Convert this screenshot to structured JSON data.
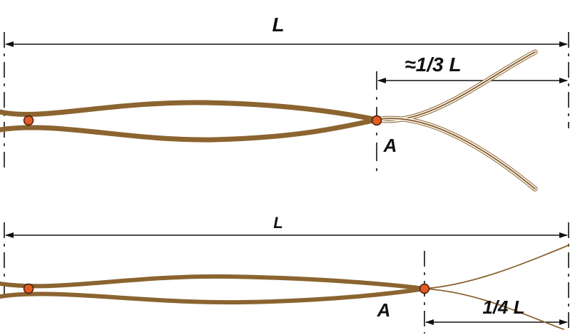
{
  "colors": {
    "rod": "#8b6430",
    "node": "#e35a22",
    "ink": "#111111"
  },
  "top": {
    "length_label": "L",
    "segment_label": "≈1/3 L",
    "node_label": "A"
  },
  "bottom": {
    "length_label": "L",
    "segment_label": "1/4 L",
    "node_label": "A"
  }
}
